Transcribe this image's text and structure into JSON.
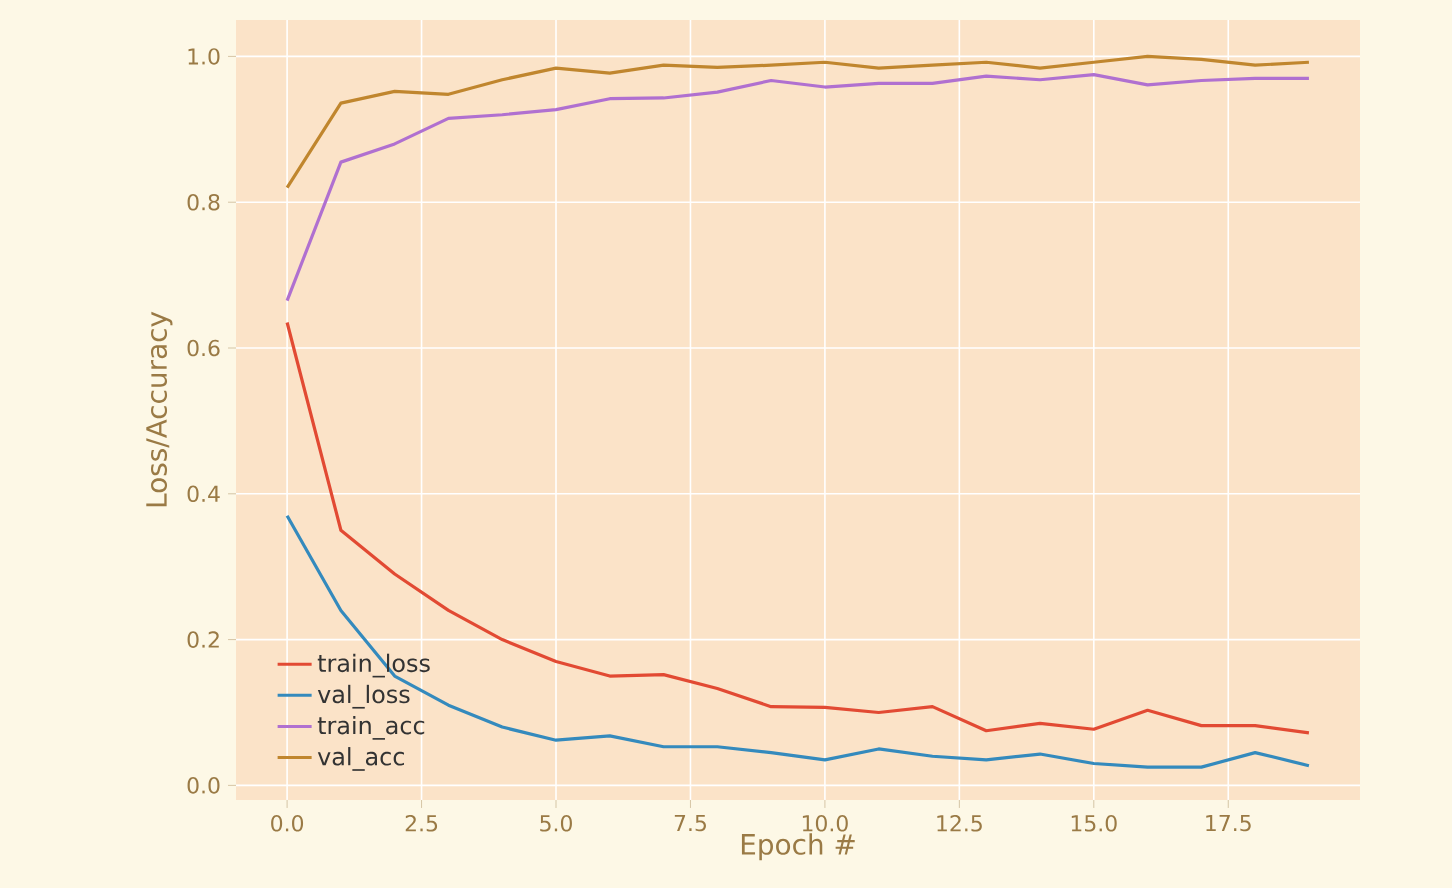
{
  "chart_data": {
    "type": "line",
    "xlabel": "Epoch #",
    "ylabel": "Loss/Accuracy",
    "x": [
      0,
      1,
      2,
      3,
      4,
      5,
      6,
      7,
      8,
      9,
      10,
      11,
      12,
      13,
      14,
      15,
      16,
      17,
      18,
      19
    ],
    "series": [
      {
        "name": "train_loss",
        "color": "#e24a33",
        "values": [
          0.635,
          0.35,
          0.29,
          0.24,
          0.2,
          0.17,
          0.15,
          0.152,
          0.133,
          0.108,
          0.107,
          0.1,
          0.108,
          0.075,
          0.085,
          0.077,
          0.103,
          0.082,
          0.082,
          0.072
        ]
      },
      {
        "name": "val_loss",
        "color": "#348abd",
        "values": [
          0.37,
          0.24,
          0.15,
          0.11,
          0.08,
          0.062,
          0.068,
          0.053,
          0.053,
          0.045,
          0.035,
          0.05,
          0.04,
          0.035,
          0.043,
          0.03,
          0.025,
          0.025,
          0.045,
          0.027
        ]
      },
      {
        "name": "train_acc",
        "color": "#b070d0",
        "values": [
          0.665,
          0.855,
          0.88,
          0.915,
          0.92,
          0.927,
          0.942,
          0.943,
          0.951,
          0.967,
          0.958,
          0.963,
          0.963,
          0.973,
          0.968,
          0.975,
          0.961,
          0.967,
          0.97,
          0.97
        ]
      },
      {
        "name": "val_acc",
        "color": "#c0862e",
        "values": [
          0.82,
          0.936,
          0.952,
          0.948,
          0.968,
          0.984,
          0.977,
          0.988,
          0.985,
          0.988,
          0.992,
          0.984,
          0.988,
          0.992,
          0.984,
          0.992,
          1.0,
          0.996,
          0.988,
          0.992
        ]
      }
    ],
    "xlim": [
      -0.95,
      19.95
    ],
    "ylim": [
      -0.02,
      1.05
    ],
    "xticks": [
      {
        "value": 0,
        "label": "0.0"
      },
      2.5,
      {
        "value": 5,
        "label": "5.0"
      },
      7.5,
      {
        "value": 10,
        "label": "10.0"
      },
      12.5,
      {
        "value": 15,
        "label": "15.0"
      },
      17.5
    ],
    "yticks": [
      {
        "value": 0,
        "label": "0.0"
      },
      0.2,
      0.4,
      0.6,
      0.8,
      {
        "value": 1,
        "label": "1.0"
      }
    ],
    "grid": true,
    "legend": "bottom left",
    "marker": "none",
    "line_style": "solid"
  }
}
